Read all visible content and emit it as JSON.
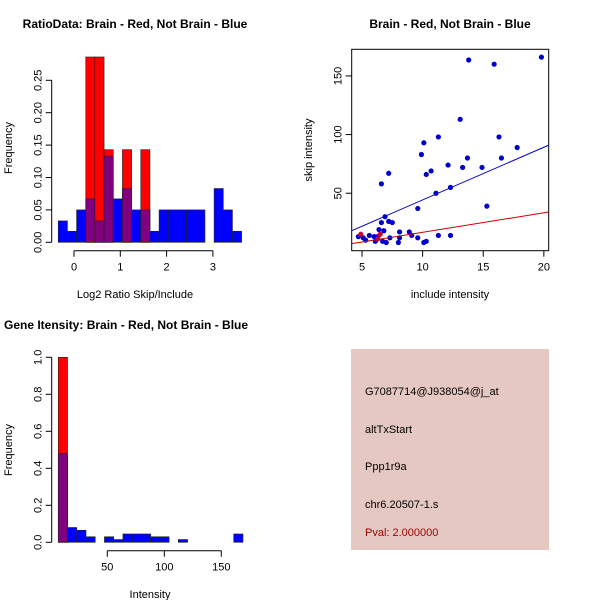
{
  "chart_data": [
    {
      "type": "bar",
      "title": "RatioData: Brain - Red, Not Brain - Blue",
      "xlabel": "Log2 Ratio Skip/Include",
      "ylabel": "Frequency",
      "bin_start": -0.34,
      "bin_width": 0.198,
      "series": [
        {
          "name": "Not Brain",
          "color": "#0000ff",
          "values": [
            0.033,
            0.017,
            0.05,
            0.067,
            0.033,
            0.133,
            0.067,
            0.083,
            0.05,
            0.05,
            0.017,
            0.05,
            0.05,
            0.05,
            0.05,
            0.05,
            0,
            0.083,
            0.05,
            0.017
          ]
        },
        {
          "name": "Brain",
          "color": "#ff0000",
          "values": [
            0,
            0,
            0,
            0.286,
            0.286,
            0.143,
            0,
            0.143,
            0,
            0.143,
            0,
            0,
            0,
            0,
            0,
            0,
            0,
            0,
            0,
            0
          ]
        }
      ],
      "overlap_color": "#800080",
      "xticks": [
        "0",
        "1",
        "2",
        "3"
      ],
      "yticks": [
        "0.00",
        "0.05",
        "0.10",
        "0.15",
        "0.20",
        "0.25"
      ]
    },
    {
      "type": "scatter",
      "title": "Brain - Red, Not Brain - Blue",
      "xlabel": "include intensity",
      "ylabel": "skip intensity",
      "xlim": [
        4.15,
        20.4
      ],
      "ylim": [
        1,
        172.7
      ],
      "xticks": [
        "5",
        "10",
        "15",
        "20"
      ],
      "yticks": [
        "50",
        "100",
        "150"
      ],
      "series": [
        {
          "name": "Not Brain",
          "color": "#0000cc",
          "points": [
            [
              13.8,
              163.6
            ],
            [
              15.9,
              160
            ],
            [
              19.8,
              166
            ],
            [
              13.1,
              113
            ],
            [
              11.3,
              98
            ],
            [
              16.3,
              98
            ],
            [
              10.1,
              93
            ],
            [
              17.8,
              89
            ],
            [
              9.9,
              83
            ],
            [
              13.7,
              80
            ],
            [
              16.5,
              80
            ],
            [
              12.1,
              74
            ],
            [
              13.3,
              72
            ],
            [
              14.9,
              72
            ],
            [
              10.7,
              69
            ],
            [
              10.3,
              66
            ],
            [
              7.2,
              67
            ],
            [
              6.6,
              58
            ],
            [
              12.3,
              55
            ],
            [
              11.1,
              50
            ],
            [
              15.3,
              39
            ],
            [
              9.6,
              37
            ],
            [
              6.9,
              30
            ],
            [
              7.2,
              26
            ],
            [
              7.5,
              25
            ],
            [
              6.6,
              25
            ],
            [
              6.4,
              19
            ],
            [
              6.8,
              18
            ],
            [
              8.1,
              17
            ],
            [
              8.9,
              17
            ],
            [
              9.1,
              14
            ],
            [
              11.3,
              14
            ],
            [
              12.3,
              14
            ],
            [
              4.7,
              13
            ],
            [
              5.1,
              12
            ],
            [
              5.6,
              14
            ],
            [
              6.0,
              13
            ],
            [
              6.3,
              13
            ],
            [
              7.3,
              12
            ],
            [
              8.1,
              12
            ],
            [
              9.6,
              12
            ],
            [
              5.3,
              10
            ],
            [
              6.1,
              9
            ],
            [
              6.7,
              9
            ],
            [
              7.0,
              8
            ],
            [
              8.0,
              8
            ],
            [
              10.1,
              8
            ],
            [
              10.3,
              9
            ]
          ]
        },
        {
          "name": "Brain",
          "color": "#cc0033",
          "points": [
            [
              4.9,
              15
            ],
            [
              6.5,
              15
            ],
            [
              6.3,
              11
            ]
          ]
        }
      ],
      "fit_lines": [
        {
          "series": "Not Brain",
          "color": "#0000cc",
          "intercept": -0.6,
          "slope": 4.49
        },
        {
          "series": "Brain",
          "color": "#cc0000",
          "intercept": 0.1,
          "slope": 1.66
        }
      ]
    },
    {
      "type": "bar",
      "title": "Gene Itensity: Brain - Red, Not Brain - Blue",
      "xlabel": "Intensity",
      "ylabel": "Frequency",
      "bin_start": 7,
      "bin_width": 8.1,
      "series": [
        {
          "name": "Not Brain",
          "color": "#0000ff",
          "values": [
            0.48,
            0.08,
            0.065,
            0.03,
            0,
            0.03,
            0.015,
            0.045,
            0.045,
            0.045,
            0.03,
            0.03,
            0,
            0.015,
            0,
            0,
            0,
            0,
            0,
            0.045
          ]
        },
        {
          "name": "Brain",
          "color": "#ff0000",
          "values": [
            1.0,
            0,
            0,
            0,
            0,
            0,
            0,
            0,
            0,
            0,
            0,
            0,
            0,
            0,
            0,
            0,
            0,
            0,
            0,
            0
          ]
        }
      ],
      "overlap_color": "#800080",
      "xticks": [
        "50",
        "100",
        "150"
      ],
      "yticks": [
        "0.0",
        "0.2",
        "0.4",
        "0.6",
        "0.8",
        "1.0"
      ]
    }
  ],
  "info_panel": {
    "probe_id": "G7087714@J938054@j_at",
    "event_type": "altTxStart",
    "gene": "Ppp1r9a",
    "location": "chr6.20507-1.s",
    "pval": "Pval: 2.000000",
    "background": "#e6c8c2",
    "pval_color": "#990000"
  }
}
